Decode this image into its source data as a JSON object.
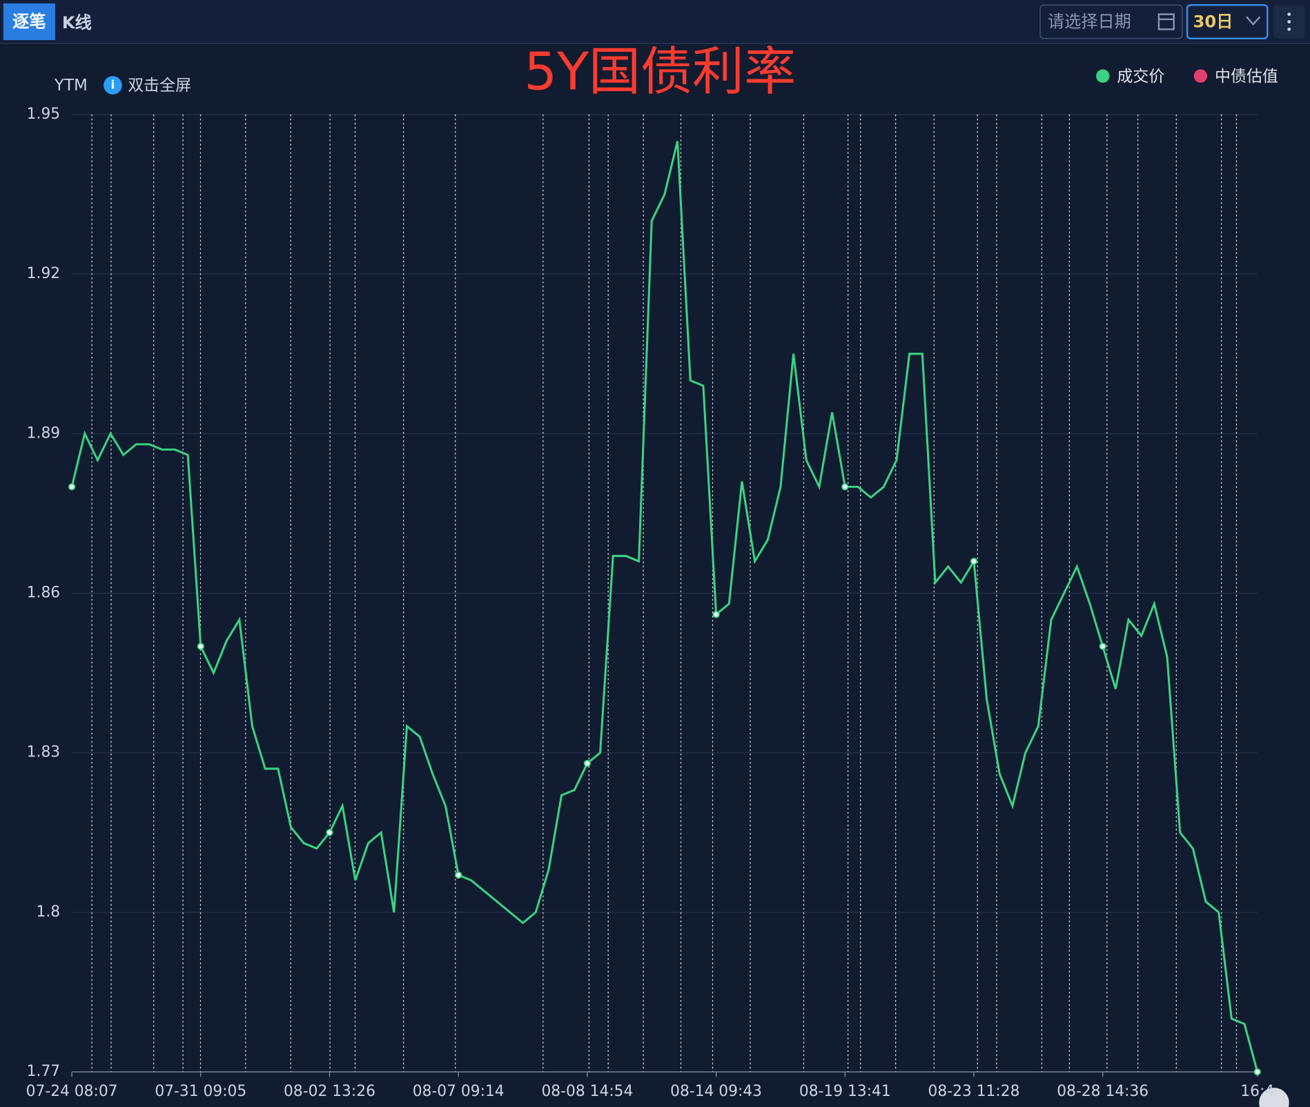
{
  "ui": {
    "tabs": [
      "逐笔",
      "K线"
    ],
    "date_placeholder": "请选择日期",
    "range_select": "30日"
  },
  "chart_data": {
    "type": "line",
    "title": "5Y国债利率",
    "y_label": "YTM",
    "hint": "双击全屏",
    "legend": [
      {
        "name": "成交价",
        "color": "#3ad384"
      },
      {
        "name": "中债估值",
        "color": "#e0406e"
      }
    ],
    "categories": [
      "07-24 08:07",
      null,
      null,
      null,
      null,
      null,
      null,
      null,
      null,
      null,
      "07-31 09:05",
      null,
      null,
      null,
      null,
      null,
      null,
      null,
      null,
      null,
      "08-02 13:26",
      null,
      null,
      null,
      null,
      null,
      null,
      null,
      null,
      null,
      "08-07 09:14",
      null,
      null,
      null,
      null,
      null,
      null,
      null,
      null,
      null,
      "08-08 14:54",
      null,
      null,
      null,
      null,
      null,
      null,
      null,
      null,
      null,
      "08-14 09:43",
      null,
      null,
      null,
      null,
      null,
      null,
      null,
      null,
      null,
      "08-19 13:41",
      null,
      null,
      null,
      null,
      null,
      null,
      null,
      null,
      null,
      "08-23 11:28",
      null,
      null,
      null,
      null,
      null,
      null,
      null,
      null,
      null,
      "08-28 14:36",
      null,
      null,
      null,
      null,
      null,
      null,
      null,
      null,
      null,
      null,
      null,
      "16:4"
    ],
    "series": [
      {
        "name": "成交价",
        "color": "#3ad384",
        "values": [
          1.88,
          1.89,
          1.885,
          1.89,
          1.886,
          1.888,
          1.888,
          1.887,
          1.887,
          1.886,
          1.85,
          1.845,
          1.851,
          1.855,
          1.835,
          1.827,
          1.827,
          1.816,
          1.813,
          1.812,
          1.815,
          1.82,
          1.806,
          1.813,
          1.815,
          1.8,
          1.835,
          1.833,
          1.826,
          1.82,
          1.807,
          1.806,
          1.804,
          1.802,
          1.8,
          1.798,
          1.8,
          1.808,
          1.822,
          1.823,
          1.828,
          1.83,
          1.867,
          1.867,
          1.866,
          1.93,
          1.935,
          1.945,
          1.9,
          1.899,
          1.856,
          1.858,
          1.881,
          1.866,
          1.87,
          1.88,
          1.905,
          1.885,
          1.88,
          1.894,
          1.88,
          1.88,
          1.878,
          1.88,
          1.885,
          1.905,
          1.905,
          1.862,
          1.865,
          1.862,
          1.866,
          1.84,
          1.826,
          1.82,
          1.83,
          1.835,
          1.855,
          1.86,
          1.865,
          1.858,
          1.85,
          1.842,
          1.855,
          1.852,
          1.858,
          1.848,
          1.815,
          1.812,
          1.802,
          1.8,
          1.78,
          1.779,
          1.77
        ]
      }
    ],
    "ylim": [
      1.77,
      1.95
    ],
    "yticks": [
      1.77,
      1.8,
      1.83,
      1.86,
      1.89,
      1.92,
      1.95
    ],
    "grid": true
  }
}
